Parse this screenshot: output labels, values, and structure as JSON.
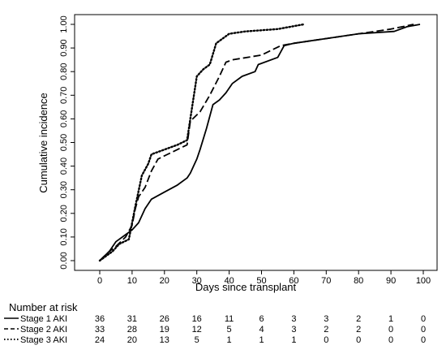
{
  "chart_data": {
    "type": "line",
    "title": "",
    "xlabel": "Days since transplant",
    "ylabel": "Cumulative incidence",
    "xlim": [
      0,
      100
    ],
    "ylim": [
      0,
      1
    ],
    "x_ticks": [
      0,
      10,
      20,
      30,
      40,
      50,
      60,
      70,
      80,
      90,
      100
    ],
    "y_ticks": [
      "0.00",
      "0.10",
      "0.20",
      "0.30",
      "0.40",
      "0.50",
      "0.60",
      "0.70",
      "0.80",
      "0.90",
      "1.00"
    ],
    "grid": false,
    "series": [
      {
        "name": "Stage 1 AKI",
        "line_style": "solid",
        "color": "#000000",
        "points": [
          [
            0,
            0
          ],
          [
            3,
            0.04
          ],
          [
            5,
            0.08
          ],
          [
            8,
            0.11
          ],
          [
            10,
            0.13
          ],
          [
            12,
            0.16
          ],
          [
            14,
            0.22
          ],
          [
            16,
            0.26
          ],
          [
            20,
            0.29
          ],
          [
            24,
            0.32
          ],
          [
            27,
            0.35
          ],
          [
            28,
            0.37
          ],
          [
            30,
            0.43
          ],
          [
            31,
            0.47
          ],
          [
            33,
            0.56
          ],
          [
            35,
            0.66
          ],
          [
            37,
            0.68
          ],
          [
            39,
            0.71
          ],
          [
            41,
            0.75
          ],
          [
            44,
            0.78
          ],
          [
            48,
            0.8
          ],
          [
            49,
            0.83
          ],
          [
            55,
            0.86
          ],
          [
            57,
            0.91
          ],
          [
            60,
            0.92
          ],
          [
            70,
            0.94
          ],
          [
            80,
            0.96
          ],
          [
            91,
            0.97
          ],
          [
            95,
            0.99
          ],
          [
            99,
            1.0
          ]
        ]
      },
      {
        "name": "Stage 2 AKI",
        "line_style": "dashed",
        "color": "#000000",
        "points": [
          [
            0,
            0
          ],
          [
            3,
            0.04
          ],
          [
            5,
            0.06
          ],
          [
            8,
            0.1
          ],
          [
            10,
            0.15
          ],
          [
            11,
            0.22
          ],
          [
            12,
            0.27
          ],
          [
            14,
            0.31
          ],
          [
            16,
            0.38
          ],
          [
            18,
            0.43
          ],
          [
            21,
            0.45
          ],
          [
            24,
            0.47
          ],
          [
            27,
            0.49
          ],
          [
            28,
            0.59
          ],
          [
            31,
            0.63
          ],
          [
            34,
            0.7
          ],
          [
            37,
            0.78
          ],
          [
            39,
            0.84
          ],
          [
            41,
            0.85
          ],
          [
            50,
            0.87
          ],
          [
            56,
            0.91
          ],
          [
            60,
            0.92
          ],
          [
            70,
            0.94
          ],
          [
            80,
            0.96
          ],
          [
            90,
            0.98
          ],
          [
            97,
            1.0
          ]
        ]
      },
      {
        "name": "Stage 3 AKI",
        "line_style": "dotted",
        "color": "#000000",
        "points": [
          [
            0,
            0
          ],
          [
            4,
            0.04
          ],
          [
            6,
            0.07
          ],
          [
            9,
            0.09
          ],
          [
            10,
            0.16
          ],
          [
            11,
            0.23
          ],
          [
            13,
            0.36
          ],
          [
            15,
            0.41
          ],
          [
            16,
            0.45
          ],
          [
            20,
            0.47
          ],
          [
            24,
            0.49
          ],
          [
            27,
            0.51
          ],
          [
            28,
            0.6
          ],
          [
            30,
            0.78
          ],
          [
            32,
            0.81
          ],
          [
            34,
            0.83
          ],
          [
            36,
            0.92
          ],
          [
            38,
            0.94
          ],
          [
            40,
            0.96
          ],
          [
            45,
            0.97
          ],
          [
            55,
            0.98
          ],
          [
            63,
            1.0
          ]
        ]
      }
    ],
    "risk_table": {
      "title": "Number at risk",
      "times": [
        0,
        10,
        20,
        30,
        40,
        50,
        60,
        70,
        80,
        90,
        100
      ],
      "rows": [
        {
          "label": "Stage 1 AKI",
          "line_style": "solid",
          "counts": [
            "36",
            "31",
            "26",
            "16",
            "11",
            "6",
            "3",
            "3",
            "2",
            "1",
            "0"
          ]
        },
        {
          "label": "Stage 2 AKI",
          "line_style": "dashed",
          "counts": [
            "33",
            "28",
            "19",
            "12",
            "5",
            "4",
            "3",
            "2",
            "2",
            "0",
            "0"
          ]
        },
        {
          "label": "Stage 3 AKI",
          "line_style": "dotted",
          "counts": [
            "24",
            "20",
            "13",
            "5",
            "1",
            "1",
            "1",
            "0",
            "0",
            "0",
            "0"
          ]
        }
      ]
    }
  }
}
